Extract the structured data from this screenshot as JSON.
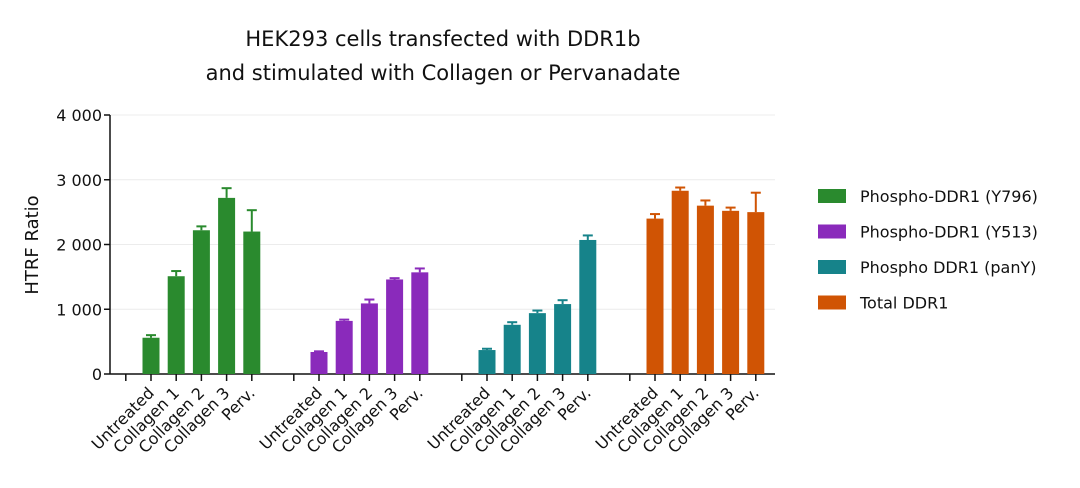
{
  "chart_data": {
    "type": "bar",
    "title": [
      "HEK293 cells transfected with DDR1b",
      "and stimulated with Collagen or Pervanadate"
    ],
    "y_label": "HTRF Ratio",
    "categories": [
      "Untreated",
      "Collagen 1",
      "Collagen 2",
      "Collagen 3",
      "Perv."
    ],
    "series": [
      {
        "name": "Phospho-DDR1 (Y796)",
        "color": "#2a8a2e",
        "values": [
          560,
          1510,
          2220,
          2720,
          2200
        ],
        "errors": [
          40,
          80,
          60,
          150,
          330
        ]
      },
      {
        "name": "Phospho-DDR1 (Y513)",
        "color": "#8a2abb",
        "values": [
          340,
          820,
          1090,
          1460,
          1570
        ],
        "errors": [
          10,
          20,
          60,
          20,
          60
        ]
      },
      {
        "name": "Phospho DDR1 (panY)",
        "color": "#16838a",
        "values": [
          370,
          760,
          940,
          1080,
          2070
        ],
        "errors": [
          20,
          40,
          40,
          60,
          70
        ]
      },
      {
        "name": "Total DDR1",
        "color": "#d05404",
        "values": [
          2400,
          2830,
          2600,
          2520,
          2500
        ],
        "errors": [
          70,
          50,
          80,
          50,
          300
        ]
      }
    ],
    "ylim": [
      0,
      4000
    ],
    "yticks": [
      0,
      {
        "value": 1000,
        "label": "1 000"
      },
      {
        "value": 2000,
        "label": "2 000"
      },
      {
        "value": 3000,
        "label": "3 000"
      },
      {
        "value": 4000,
        "label": "4 000"
      }
    ],
    "grid": true,
    "legend": "right"
  }
}
